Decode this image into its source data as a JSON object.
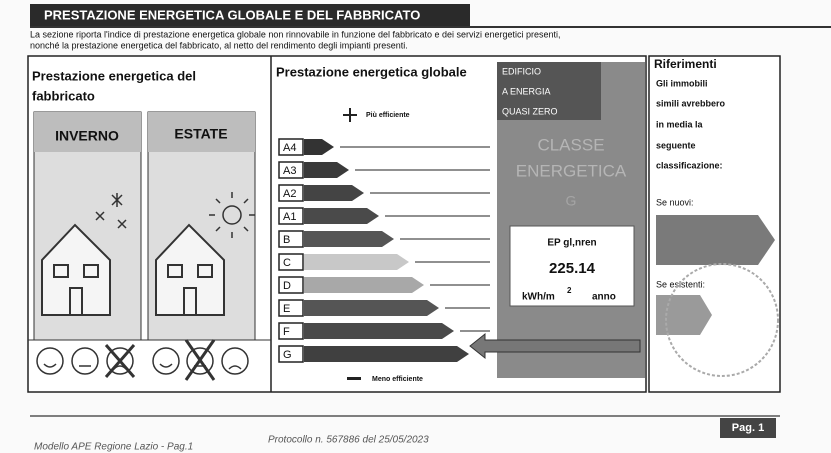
{
  "header": {
    "title": "PRESTAZIONE ENERGETICA GLOBALE E DEL FABBRICATO"
  },
  "intro": [
    "La sezione riporta l'indice di prestazione energetica globale non rinnovabile in funzione del fabbricato e dei servizi energetici presenti,",
    "nonché la prestazione energetica del fabbricato, al netto del rendimento degli impianti presenti."
  ],
  "building_performance": {
    "title": [
      "Prestazione energetica del",
      "fabbricato"
    ],
    "winter": "INVERNO",
    "summer": "ESTATE"
  },
  "global_performance": {
    "title": "Prestazione energetica globale",
    "most_efficient": "Più efficiente",
    "least_efficient": "Meno efficiente",
    "classes": [
      "A4",
      "A3",
      "A2",
      "A1",
      "B",
      "C",
      "D",
      "E",
      "F",
      "G"
    ]
  },
  "badge": {
    "nzeb": [
      "EDIFICIO",
      "A ENERGIA",
      "QUASI ZERO"
    ],
    "class_title": [
      "CLASSE",
      "ENERGETICA"
    ],
    "class": "G",
    "ep_label": "EP gl,nren",
    "ep_value": 225.14,
    "ep_unit": "kWh/m",
    "ep_unit_exp": "2",
    "ep_unit_per": "anno"
  },
  "references": {
    "title": "Riferimenti",
    "text": [
      "Gli immobili",
      "simili avrebbero",
      "in media la",
      "seguente",
      "classificazione:"
    ],
    "new": "Se nuovi:",
    "existing": "Se esistenti:"
  },
  "footer": {
    "model": "Modello APE Regione Lazio - Pag.1",
    "protocol": "Protocollo n. 567886 del 25/05/2023",
    "page": "Pag. 1"
  }
}
